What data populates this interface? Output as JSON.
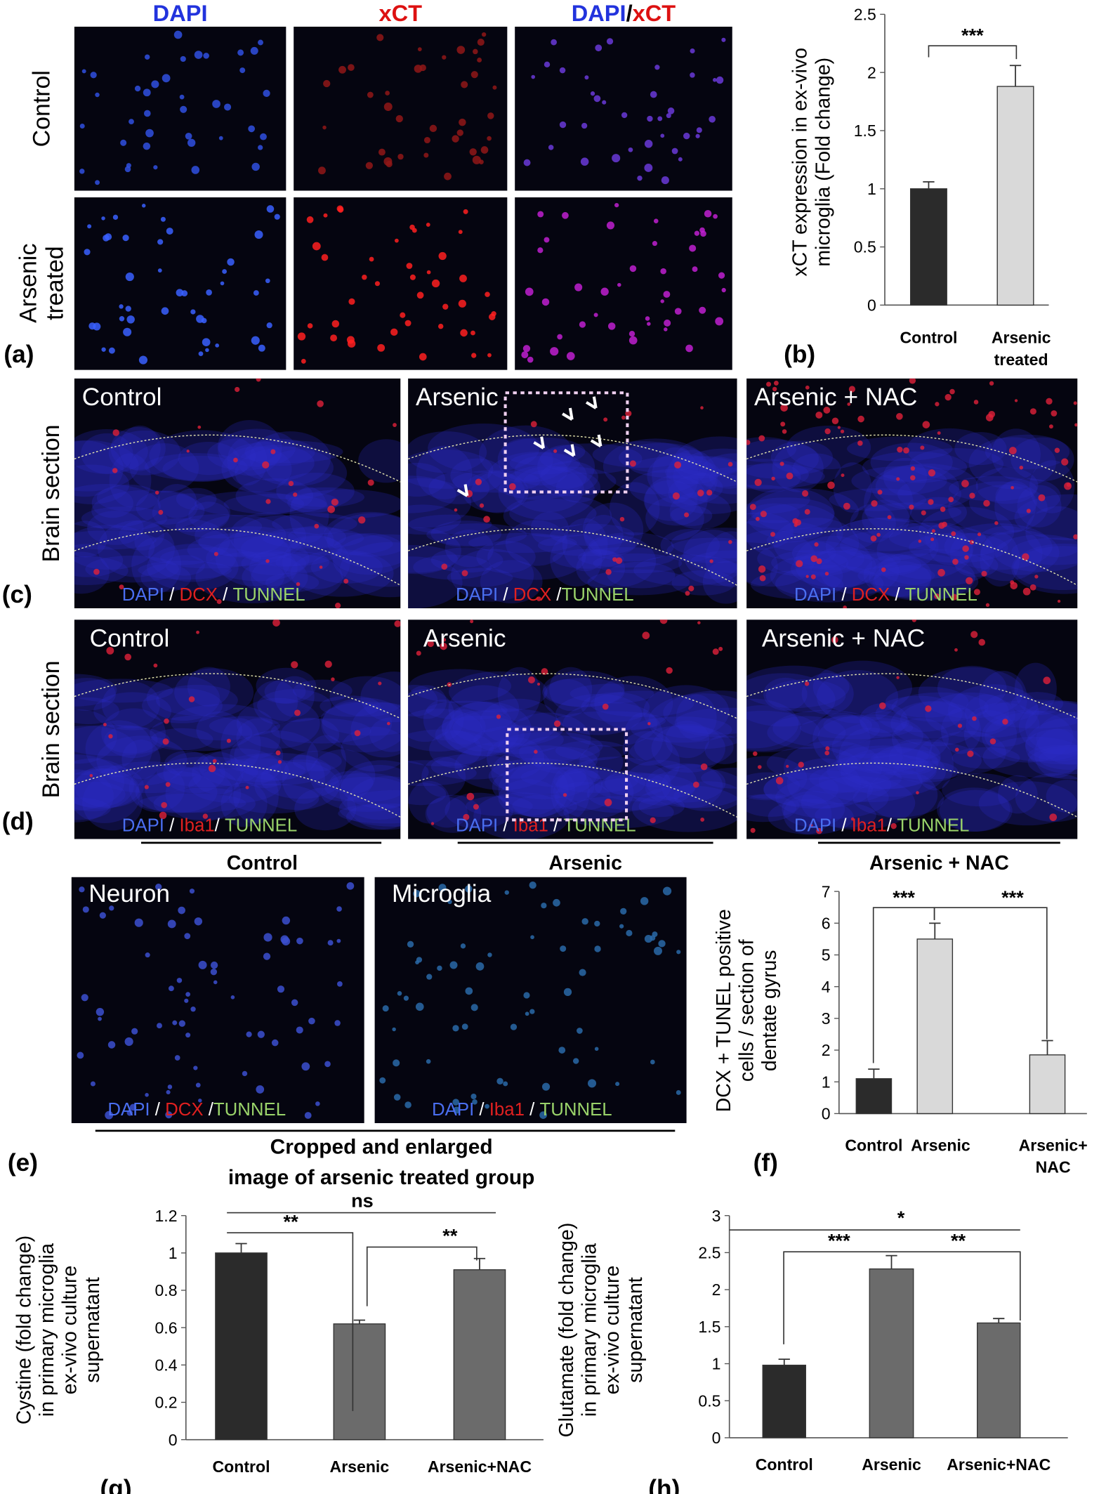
{
  "chart_data": [
    {
      "type": "bar",
      "categories": [
        "Control",
        "Arsenic treated"
      ],
      "values": [
        1,
        1.88
      ],
      "errors": [
        0.06,
        0.18
      ],
      "colors": [
        "#2b2b2b",
        "#d9d9d9"
      ],
      "ylim": [
        0,
        2.5
      ],
      "yticks": [
        0,
        0.5,
        1,
        1.5,
        2,
        2.5
      ],
      "ylabel": [
        "xCT expression in ex-vivo",
        "microglia (Fold change)"
      ],
      "annotations": [
        "***"
      ]
    },
    {
      "type": "bar",
      "categories": [
        "Control",
        "Arsenic",
        "Arsenic+ NAC"
      ],
      "values": [
        1.1,
        5.5,
        1.85
      ],
      "errors": [
        0.3,
        0.5,
        0.45
      ],
      "colors": [
        "#2b2b2b",
        "#d9d9d9",
        "#d9d9d9"
      ],
      "ylim": [
        0,
        7
      ],
      "yticks": [
        0,
        1,
        2,
        3,
        4,
        5,
        6,
        7
      ],
      "ylabel": [
        "DCX + TUNEL positive",
        "cells / section of",
        "dentate gyrus"
      ],
      "annotations": [
        "***",
        "***"
      ]
    },
    {
      "type": "bar",
      "categories": [
        "Control",
        "Arsenic",
        "Arsenic+NAC"
      ],
      "values": [
        1,
        0.62,
        0.91
      ],
      "errors": [
        0.05,
        0.02,
        0.06
      ],
      "colors": [
        "#2b2b2b",
        "#6b6b6b",
        "#6b6b6b"
      ],
      "ylim": [
        0,
        1.2
      ],
      "yticks": [
        0,
        0.2,
        0.4,
        0.6,
        0.8,
        1,
        1.2
      ],
      "ylabel": [
        "Cystine (fold change)",
        "in primary microglia",
        "ex-vivo culture",
        "supernatant"
      ],
      "annotations": [
        "ns",
        "**",
        "**"
      ]
    },
    {
      "type": "bar",
      "categories": [
        "Control",
        "Arsenic",
        "Arsenic+NAC"
      ],
      "values": [
        0.98,
        2.28,
        1.55
      ],
      "errors": [
        0.08,
        0.18,
        0.06
      ],
      "colors": [
        "#2b2b2b",
        "#6b6b6b",
        "#6b6b6b"
      ],
      "ylim": [
        0,
        3
      ],
      "yticks": [
        0,
        0.5,
        1,
        1.5,
        2,
        2.5,
        3
      ],
      "ylabel": [
        "Glutamate (fold change)",
        "in primary microglia",
        "ex-vivo culture",
        "supernatant"
      ],
      "annotations": [
        "*",
        "***",
        "**"
      ]
    }
  ],
  "figure": {
    "panel_labels": [
      "(a)",
      "(b)",
      "(c)",
      "(d)",
      "(e)",
      "(f)",
      "(g)",
      "(h)"
    ],
    "a": {
      "columns": [
        [
          "DAPI"
        ],
        [
          "xCT"
        ],
        [
          "DAPI",
          "/",
          "xCT"
        ]
      ],
      "rows": [
        "Control",
        "Arsenic treated"
      ]
    },
    "c": {
      "side": "Brain section",
      "titles": [
        "Control",
        "Arsenic",
        "Arsenic + NAC"
      ],
      "stains": [
        [
          "DAPI",
          " / ",
          "DCX",
          " / ",
          "TUNNEL"
        ],
        [
          "DAPI",
          " / ",
          "DCX",
          "  /",
          "TUNNEL"
        ],
        [
          "DAPI",
          " / ",
          "DCX",
          " / ",
          "TUNNEL"
        ]
      ]
    },
    "d": {
      "side": "Brain section",
      "titles": [
        "Control",
        "Arsenic",
        "Arsenic + NAC"
      ],
      "stains": [
        [
          "DAPI",
          " / ",
          "Iba1",
          "/ ",
          "TUNNEL"
        ],
        [
          "DAPI",
          " / ",
          "Iba1",
          " / ",
          "TUNNEL"
        ],
        [
          "DAPI",
          " / ",
          "Iba1",
          "/ ",
          "TUNNEL"
        ]
      ],
      "groups": [
        "Control",
        "Arsenic",
        "Arsenic + NAC"
      ]
    },
    "e": {
      "titles": [
        "Neuron",
        "Microglia"
      ],
      "stains": [
        [
          "DAPI",
          " / ",
          "DCX",
          " /",
          "TUNNEL"
        ],
        [
          "DAPI",
          " / ",
          "Iba1",
          " / ",
          "TUNNEL"
        ]
      ],
      "caption": [
        "Cropped  and  enlarged",
        "image of arsenic treated group"
      ]
    }
  }
}
